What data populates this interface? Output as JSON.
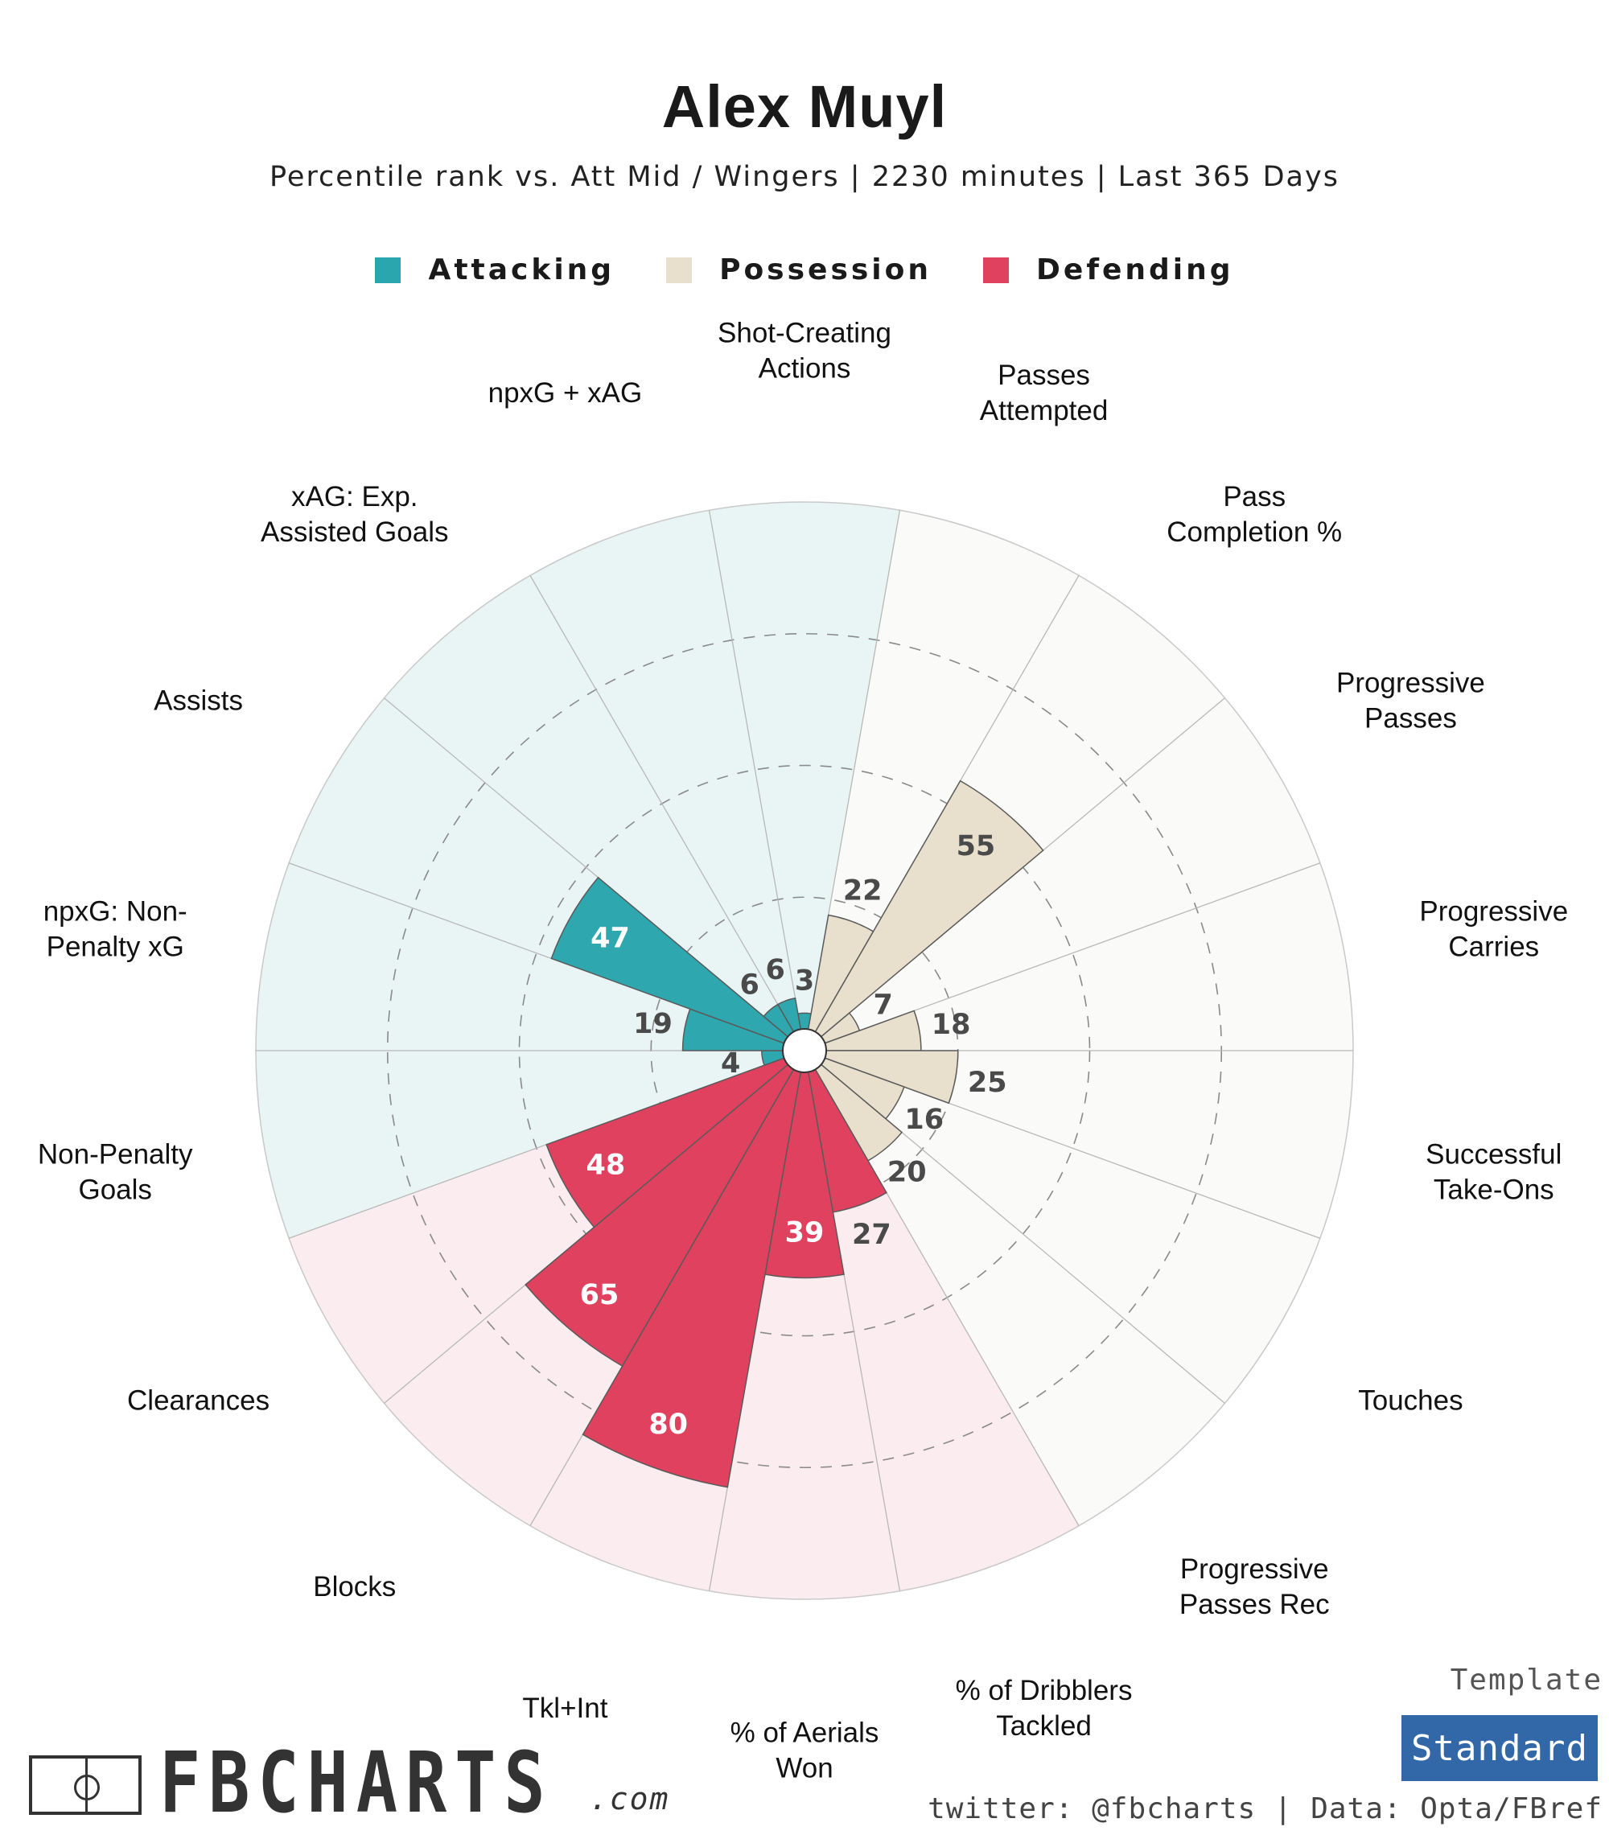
{
  "header": {
    "title": "Alex Muyl",
    "subtitle": "Percentile rank vs. Att Mid / Wingers | 2230 minutes | Last 365 Days"
  },
  "legend": [
    {
      "name": "Attacking",
      "color": "#2aa6ae"
    },
    {
      "name": "Possession",
      "color": "#e8e0cc"
    },
    {
      "name": "Defending",
      "color": "#e0415f"
    }
  ],
  "colors": {
    "attacking_bg": "#e9f5f5",
    "possession_bg": "#fafaf9",
    "defending_bg": "#fbecef",
    "attacking_bar": "#2ea7ae",
    "possession_bar": "#e8e0cc",
    "defending_bar": "#e0415f"
  },
  "chart_data": {
    "type": "polar-bar",
    "title": "Alex Muyl",
    "rlim": [
      0,
      100
    ],
    "rings": [
      25,
      50,
      75
    ],
    "categories": [
      "Shot-Creating Actions",
      "Passes Attempted",
      "Pass Completion %",
      "Progressive Passes",
      "Progressive Carries",
      "Successful Take-Ons",
      "Touches",
      "Progressive Passes Rec",
      "% of Dribblers Tackled",
      "% of Aerials Won",
      "Tkl+Int",
      "Blocks",
      "Clearances",
      "Non-Penalty Goals",
      "npxG: Non-Penalty xG",
      "Assists",
      "xAG: Exp. Assisted Goals",
      "npxG + xAG"
    ],
    "label_lines": [
      [
        "Shot-Creating",
        "Actions"
      ],
      [
        "Passes",
        "Attempted"
      ],
      [
        "Pass",
        "Completion %"
      ],
      [
        "Progressive",
        "Passes"
      ],
      [
        "Progressive",
        "Carries"
      ],
      [
        "Successful",
        "Take-Ons"
      ],
      [
        "Touches"
      ],
      [
        "Progressive",
        "Passes Rec"
      ],
      [
        "% of Dribblers",
        "Tackled"
      ],
      [
        "% of Aerials",
        "Won"
      ],
      [
        "Tkl+Int"
      ],
      [
        "Blocks"
      ],
      [
        "Clearances"
      ],
      [
        "Non-Penalty",
        "Goals"
      ],
      [
        "npxG: Non-",
        "Penalty xG"
      ],
      [
        "Assists"
      ],
      [
        "xAG: Exp.",
        "Assisted Goals"
      ],
      [
        "npxG + xAG"
      ]
    ],
    "groups": [
      "Attacking",
      "Possession",
      "Possession",
      "Possession",
      "Possession",
      "Possession",
      "Possession",
      "Possession",
      "Defending",
      "Defending",
      "Defending",
      "Defending",
      "Defending",
      "Attacking",
      "Attacking",
      "Attacking",
      "Attacking",
      "Attacking"
    ],
    "values": [
      3,
      22,
      55,
      7,
      18,
      25,
      16,
      20,
      27,
      39,
      80,
      65,
      48,
      4,
      19,
      47,
      6,
      6
    ]
  },
  "footer": {
    "logo_text": "FBCHARTS",
    "logo_suffix": ".com",
    "template_label": "Template",
    "template_value": "Standard",
    "credits": "twitter: @fbcharts | Data: Opta/FBref"
  }
}
